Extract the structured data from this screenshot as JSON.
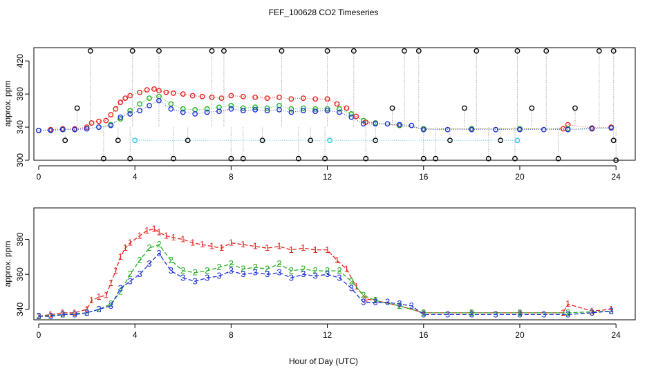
{
  "title": "FEF_100628  CO2 Timeseries",
  "colors": {
    "black": "#000000",
    "red": "#e8201c",
    "green": "#20b020",
    "blue": "#1c2fd6",
    "cyan": "#2ec6e6",
    "gray": "#9a9a9a"
  },
  "chart_data": [
    {
      "type": "scatter",
      "panel": "top",
      "ylabel": "approx. ppm",
      "xlabel": "",
      "xlim": [
        -0.2,
        24.8
      ],
      "ylim": [
        300,
        436
      ],
      "xticks": [
        "0",
        "4",
        "8",
        "12",
        "16",
        "20",
        "24"
      ],
      "yticks": [
        "300",
        "340",
        "380",
        "420"
      ],
      "series": [
        {
          "color": "red",
          "x": [
            0,
            0.5,
            1,
            1.5,
            2,
            2.2,
            2.5,
            2.8,
            3,
            3.2,
            3.4,
            3.6,
            3.8,
            4.2,
            4.5,
            4.8,
            5,
            5.3,
            5.6,
            6,
            6.4,
            6.8,
            7.2,
            7.6,
            8,
            8.5,
            9,
            9.5,
            10,
            10.5,
            11,
            11.5,
            12,
            12.4,
            12.8,
            13.2,
            13.6,
            14,
            15,
            16,
            18,
            20,
            21.8,
            22,
            23,
            23.8
          ],
          "y": [
            336,
            337,
            338,
            338,
            340,
            345,
            347,
            348,
            355,
            362,
            370,
            375,
            378,
            382,
            385,
            386,
            384,
            382,
            381,
            380,
            378,
            377,
            376,
            375,
            378,
            377,
            376,
            375,
            376,
            374,
            375,
            374,
            374,
            368,
            363,
            353,
            346,
            345,
            342,
            338,
            338,
            338,
            338,
            343,
            339,
            340
          ]
        },
        {
          "color": "green",
          "x": [
            0,
            1,
            2,
            2.5,
            3,
            3.4,
            3.8,
            4.2,
            4.6,
            5,
            5.5,
            6,
            6.5,
            7,
            7.5,
            8,
            8.5,
            9,
            9.5,
            10,
            10.5,
            11,
            11.5,
            12,
            12.5,
            13,
            13.5,
            14,
            15,
            16,
            18,
            20,
            22,
            23.8
          ],
          "y": [
            336,
            337,
            338,
            340,
            343,
            350,
            360,
            368,
            375,
            377,
            368,
            362,
            361,
            362,
            364,
            366,
            363,
            364,
            363,
            366,
            362,
            363,
            362,
            362,
            362,
            356,
            348,
            345,
            342,
            338,
            338,
            338,
            338,
            339
          ]
        },
        {
          "color": "blue",
          "x": [
            0,
            0.5,
            1,
            1.5,
            2,
            2.5,
            3,
            3.4,
            3.8,
            4.2,
            4.6,
            5,
            5.5,
            6,
            6.5,
            7,
            7.5,
            8,
            8.5,
            9,
            9.5,
            10,
            10.5,
            11,
            11.5,
            12,
            12.5,
            13,
            13.5,
            14,
            14.5,
            15,
            15.5,
            16,
            17,
            18,
            19,
            20,
            21,
            22,
            23,
            23.8
          ],
          "y": [
            336,
            336,
            337,
            337,
            338,
            340,
            342,
            352,
            356,
            360,
            366,
            372,
            362,
            358,
            356,
            358,
            359,
            362,
            360,
            361,
            360,
            361,
            358,
            360,
            359,
            360,
            358,
            352,
            344,
            344,
            344,
            343,
            342,
            337,
            337,
            337,
            337,
            337,
            337,
            337,
            338,
            339
          ]
        },
        {
          "color": "black",
          "x": [
            1.1,
            1.6,
            2.15,
            2.7,
            3.3,
            3.8,
            3.9,
            5.0,
            5.6,
            6.2,
            7.2,
            7.7,
            8.0,
            8.5,
            9.3,
            10.1,
            10.8,
            11.3,
            11.9,
            12.0,
            13.1,
            13.6,
            14.0,
            14.7,
            15.2,
            15.8,
            16.0,
            16.5,
            17.1,
            17.7,
            18.2,
            18.7,
            19.2,
            19.8,
            19.9,
            20.5,
            21.1,
            21.6,
            22.3,
            23.3,
            23.9,
            24.0,
            23.9
          ],
          "y": [
            324,
            363,
            432,
            302,
            324,
            302,
            432,
            432,
            302,
            324,
            432,
            432,
            302,
            302,
            324,
            432,
            302,
            324,
            302,
            432,
            432,
            302,
            324,
            363,
            432,
            432,
            302,
            302,
            324,
            363,
            432,
            302,
            324,
            302,
            432,
            363,
            432,
            302,
            363,
            432,
            432,
            300,
            324
          ]
        },
        {
          "color": "cyan",
          "x": [
            4.0,
            12.1,
            19.9
          ],
          "y": [
            324,
            324,
            324
          ]
        }
      ]
    },
    {
      "type": "line",
      "panel": "bottom",
      "ylabel": "approx. ppm",
      "xlabel": "Hour of Day (UTC)",
      "xlim": [
        -0.2,
        24.8
      ],
      "ylim": [
        334,
        398
      ],
      "xticks": [
        "0",
        "4",
        "8",
        "12",
        "16",
        "20",
        "24"
      ],
      "yticks": [
        "340",
        "360",
        "380"
      ],
      "series": [
        {
          "color": "red",
          "glyph": "1",
          "x": [
            0,
            0.5,
            1,
            1.5,
            2,
            2.2,
            2.5,
            2.8,
            3,
            3.2,
            3.4,
            3.6,
            3.8,
            4.2,
            4.5,
            4.8,
            5,
            5.3,
            5.6,
            6,
            6.4,
            6.8,
            7.2,
            7.6,
            8,
            8.5,
            9,
            9.5,
            10,
            10.5,
            11,
            11.5,
            12,
            12.4,
            12.8,
            13.2,
            13.6,
            14,
            15,
            16,
            18,
            20,
            21.8,
            22,
            23,
            23.8
          ],
          "y": [
            336,
            337,
            338,
            338,
            340,
            345,
            347,
            348,
            355,
            362,
            370,
            375,
            378,
            382,
            385,
            386,
            384,
            382,
            381,
            380,
            378,
            377,
            376,
            375,
            378,
            377,
            376,
            375,
            376,
            374,
            375,
            374,
            374,
            368,
            363,
            353,
            346,
            345,
            342,
            338,
            338,
            338,
            338,
            343,
            339,
            340
          ]
        },
        {
          "color": "green",
          "glyph": "2",
          "x": [
            0,
            1,
            2,
            2.5,
            3,
            3.4,
            3.8,
            4.2,
            4.6,
            5,
            5.5,
            6,
            6.5,
            7,
            7.5,
            8,
            8.5,
            9,
            9.5,
            10,
            10.5,
            11,
            11.5,
            12,
            12.5,
            13,
            13.5,
            14,
            15,
            16,
            18,
            20,
            22,
            23.8
          ],
          "y": [
            336,
            337,
            338,
            340,
            343,
            350,
            360,
            368,
            375,
            377,
            368,
            362,
            361,
            362,
            364,
            366,
            363,
            364,
            363,
            366,
            362,
            363,
            362,
            362,
            362,
            356,
            348,
            345,
            342,
            338,
            338,
            338,
            338,
            339
          ]
        },
        {
          "color": "blue",
          "glyph": "3",
          "x": [
            0,
            0.5,
            1,
            1.5,
            2,
            2.5,
            3,
            3.4,
            3.8,
            4.2,
            4.6,
            5,
            5.5,
            6,
            6.5,
            7,
            7.5,
            8,
            8.5,
            9,
            9.5,
            10,
            10.5,
            11,
            11.5,
            12,
            12.5,
            13,
            13.5,
            14,
            14.5,
            15,
            15.5,
            16,
            17,
            18,
            19,
            20,
            21,
            22,
            23,
            23.8
          ],
          "y": [
            336,
            336,
            337,
            337,
            338,
            340,
            342,
            352,
            356,
            360,
            366,
            372,
            362,
            358,
            356,
            358,
            359,
            362,
            360,
            361,
            360,
            361,
            358,
            360,
            359,
            360,
            358,
            352,
            344,
            344,
            344,
            343,
            342,
            337,
            337,
            337,
            337,
            337,
            337,
            337,
            338,
            339
          ]
        }
      ]
    }
  ]
}
